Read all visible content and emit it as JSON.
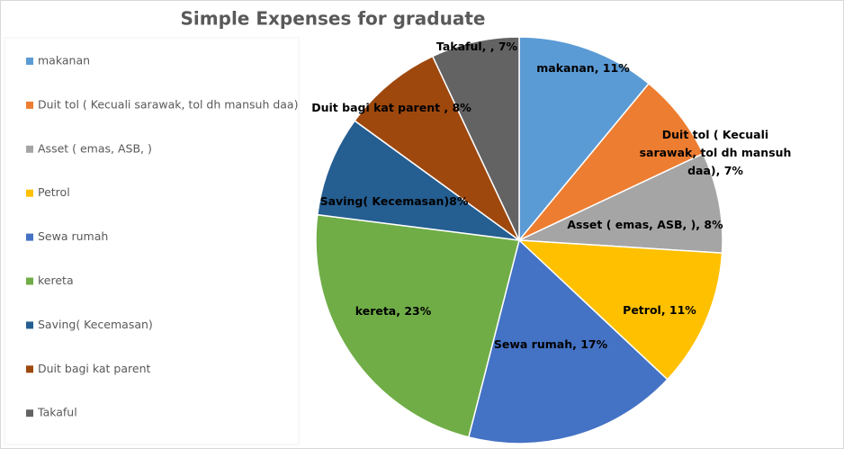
{
  "chart_data": {
    "type": "pie",
    "title": "Simple Expenses for graduate",
    "categories": [
      "makanan",
      "Duit tol ( Kecuali sarawak, tol dh mansuh daa)",
      "Asset ( emas, ASB, )",
      "Petrol",
      "Sewa rumah",
      "kereta",
      "Saving( Kecemasan)",
      "Duit bagi kat parent",
      "Takaful"
    ],
    "values": [
      11,
      7,
      8,
      11,
      17,
      23,
      8,
      8,
      7
    ],
    "value_labels": [
      "makanan, 11%",
      "Duit tol ( Kecuali sarawak, tol dh mansuh daa), 7%",
      "Asset ( emas, ASB, ), 8%",
      "Petrol, 11%",
      "Sewa rumah, 17%",
      "kereta, 23%",
      "Saving( Kecemasan)8%",
      "Duit bagi kat parent ,  8%",
      "Takaful, , 7%"
    ],
    "colors": [
      "#5b9bd5",
      "#ed7d31",
      "#a5a5a5",
      "#ffc000",
      "#4472c4",
      "#70ad47",
      "#255e91",
      "#9e480e",
      "#636363"
    ],
    "legend": "left"
  }
}
